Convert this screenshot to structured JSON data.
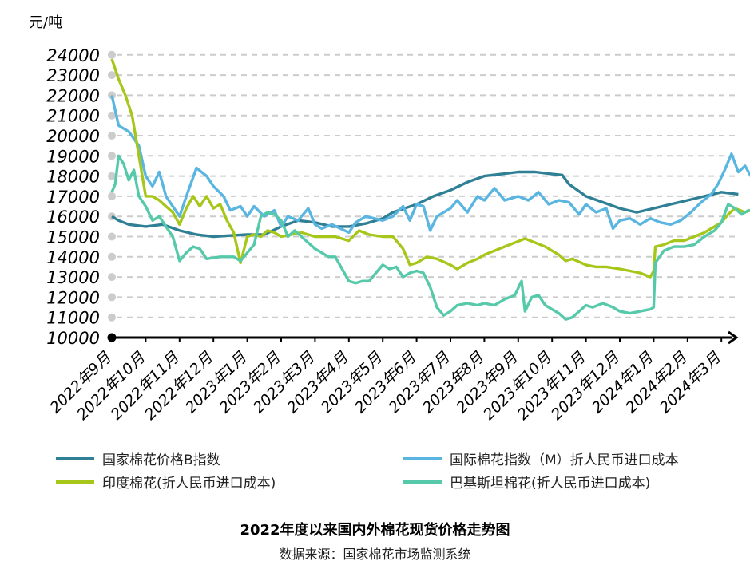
{
  "colors": {
    "b_index": "#2f7f95",
    "intl_index": "#5ab6e0",
    "india": "#a6c61a",
    "pakistan": "#55c9a9",
    "grid": "#cccccc",
    "axis": "#000000"
  },
  "caption": {
    "title": "2022年度以来国内外棉花现货价格走势图",
    "source": "数据来源：国家棉花市场监测系统"
  },
  "chart_data": {
    "type": "line",
    "unit": "元/吨",
    "ylim": [
      10000,
      24000
    ],
    "y_ticks": [
      "24000",
      "23000",
      "22000",
      "21000",
      "20000",
      "19000",
      "18000",
      "17000",
      "16000",
      "15000",
      "14000",
      "13000",
      "12000",
      "11000",
      "10000"
    ],
    "x_ticks": [
      "2022年9月",
      "2022年10月",
      "2022年11月",
      "2022年12月",
      "2023年1月",
      "2023年2月",
      "2023年3月",
      "2023年4月",
      "2023年5月",
      "2023年6月",
      "2023年7月",
      "2023年8月",
      "2023年9月",
      "2023年10月",
      "2023年11月",
      "2023年12月",
      "2024年1月",
      "2024年2月",
      "2024年3月"
    ],
    "grid": "horizontal dashed",
    "legend_position": "bottom",
    "series": [
      {
        "name": "国家棉花价格B指数",
        "color_key": "b_index",
        "points": [
          [
            0,
            16000
          ],
          [
            0.2,
            15800
          ],
          [
            0.5,
            15600
          ],
          [
            1,
            15500
          ],
          [
            1.5,
            15600
          ],
          [
            2,
            15300
          ],
          [
            2.5,
            15100
          ],
          [
            3,
            15000
          ],
          [
            3.5,
            15050
          ],
          [
            4,
            15100
          ],
          [
            4.5,
            15100
          ],
          [
            5,
            15500
          ],
          [
            5.5,
            15800
          ],
          [
            6,
            15700
          ],
          [
            6.5,
            15500
          ],
          [
            7,
            15500
          ],
          [
            7.5,
            15650
          ],
          [
            8,
            15900
          ],
          [
            8.3,
            16200
          ],
          [
            9,
            16600
          ],
          [
            9.5,
            17000
          ],
          [
            10,
            17300
          ],
          [
            10.5,
            17700
          ],
          [
            11,
            18000
          ],
          [
            11.5,
            18100
          ],
          [
            12,
            18200
          ],
          [
            12.5,
            18200
          ],
          [
            13,
            18100
          ],
          [
            13.3,
            18050
          ],
          [
            13.5,
            17600
          ],
          [
            14,
            17000
          ],
          [
            14.5,
            16700
          ],
          [
            15,
            16400
          ],
          [
            15.5,
            16200
          ],
          [
            16,
            16400
          ],
          [
            16.5,
            16600
          ],
          [
            17,
            16800
          ],
          [
            17.5,
            17000
          ],
          [
            18,
            17200
          ],
          [
            18.5,
            17100
          ]
        ]
      },
      {
        "name": "国际棉花指数（M）折人民币进口成本",
        "color_key": "intl_index",
        "points": [
          [
            0,
            22000
          ],
          [
            0.2,
            20500
          ],
          [
            0.5,
            20200
          ],
          [
            0.8,
            19500
          ],
          [
            1,
            18000
          ],
          [
            1.2,
            17500
          ],
          [
            1.4,
            18200
          ],
          [
            1.6,
            17000
          ],
          [
            1.8,
            16500
          ],
          [
            2,
            16000
          ],
          [
            2.2,
            17000
          ],
          [
            2.5,
            18400
          ],
          [
            2.8,
            18000
          ],
          [
            3,
            17500
          ],
          [
            3.3,
            17000
          ],
          [
            3.5,
            16300
          ],
          [
            3.8,
            16500
          ],
          [
            4,
            16000
          ],
          [
            4.2,
            16500
          ],
          [
            4.5,
            16000
          ],
          [
            4.8,
            16300
          ],
          [
            5,
            15500
          ],
          [
            5.2,
            16000
          ],
          [
            5.5,
            15800
          ],
          [
            5.8,
            16400
          ],
          [
            6,
            15600
          ],
          [
            6.2,
            15400
          ],
          [
            6.5,
            15600
          ],
          [
            7,
            15200
          ],
          [
            7.2,
            15700
          ],
          [
            7.5,
            16000
          ],
          [
            8,
            15800
          ],
          [
            8.3,
            16000
          ],
          [
            8.6,
            16500
          ],
          [
            8.8,
            15800
          ],
          [
            9,
            16600
          ],
          [
            9.2,
            16500
          ],
          [
            9.4,
            15300
          ],
          [
            9.6,
            16000
          ],
          [
            10,
            16400
          ],
          [
            10.2,
            16800
          ],
          [
            10.5,
            16200
          ],
          [
            10.8,
            17000
          ],
          [
            11,
            16800
          ],
          [
            11.3,
            17400
          ],
          [
            11.6,
            16800
          ],
          [
            12,
            17000
          ],
          [
            12.3,
            16800
          ],
          [
            12.6,
            17200
          ],
          [
            12.9,
            16600
          ],
          [
            13.2,
            16800
          ],
          [
            13.5,
            16700
          ],
          [
            13.8,
            16100
          ],
          [
            14,
            16600
          ],
          [
            14.3,
            16200
          ],
          [
            14.6,
            16400
          ],
          [
            14.8,
            15400
          ],
          [
            15,
            15800
          ],
          [
            15.3,
            15900
          ],
          [
            15.6,
            15600
          ],
          [
            15.9,
            15900
          ],
          [
            16.2,
            15700
          ],
          [
            16.5,
            15600
          ],
          [
            16.8,
            15800
          ],
          [
            17.1,
            16200
          ],
          [
            17.4,
            16700
          ],
          [
            17.7,
            17100
          ],
          [
            17.9,
            17600
          ],
          [
            18.1,
            18300
          ],
          [
            18.3,
            19100
          ],
          [
            18.5,
            18200
          ],
          [
            18.7,
            18500
          ],
          [
            18.9,
            17900
          ],
          [
            19,
            18000
          ]
        ]
      },
      {
        "name": "印度棉花(折人民币进口成本)",
        "color_key": "india",
        "points": [
          [
            0,
            23800
          ],
          [
            0.2,
            22800
          ],
          [
            0.4,
            22000
          ],
          [
            0.6,
            21000
          ],
          [
            0.8,
            19000
          ],
          [
            1,
            17000
          ],
          [
            1.2,
            17000
          ],
          [
            1.4,
            16800
          ],
          [
            1.6,
            16500
          ],
          [
            1.8,
            16200
          ],
          [
            2,
            15600
          ],
          [
            2.2,
            16400
          ],
          [
            2.4,
            17000
          ],
          [
            2.6,
            16500
          ],
          [
            2.8,
            17000
          ],
          [
            3,
            16400
          ],
          [
            3.2,
            16600
          ],
          [
            3.4,
            15800
          ],
          [
            3.6,
            15200
          ],
          [
            3.8,
            13700
          ],
          [
            4,
            15000
          ],
          [
            4.2,
            15100
          ],
          [
            4.4,
            15000
          ],
          [
            4.6,
            15300
          ],
          [
            4.8,
            15200
          ],
          [
            5,
            15000
          ],
          [
            5.3,
            15100
          ],
          [
            5.6,
            15200
          ],
          [
            6,
            15000
          ],
          [
            6.3,
            15000
          ],
          [
            6.6,
            15000
          ],
          [
            7,
            14800
          ],
          [
            7.3,
            15300
          ],
          [
            7.6,
            15100
          ],
          [
            8,
            15000
          ],
          [
            8.3,
            15000
          ],
          [
            8.6,
            14400
          ],
          [
            8.8,
            13600
          ],
          [
            9,
            13700
          ],
          [
            9.3,
            14000
          ],
          [
            9.6,
            13900
          ],
          [
            10,
            13600
          ],
          [
            10.2,
            13400
          ],
          [
            10.5,
            13700
          ],
          [
            10.8,
            13900
          ],
          [
            11,
            14100
          ],
          [
            11.3,
            14300
          ],
          [
            11.6,
            14500
          ],
          [
            11.9,
            14700
          ],
          [
            12.2,
            14900
          ],
          [
            12.5,
            14700
          ],
          [
            12.8,
            14500
          ],
          [
            13,
            14300
          ],
          [
            13.2,
            14100
          ],
          [
            13.4,
            13800
          ],
          [
            13.6,
            13900
          ],
          [
            14,
            13600
          ],
          [
            14.3,
            13500
          ],
          [
            14.6,
            13500
          ],
          [
            15,
            13400
          ],
          [
            15.3,
            13300
          ],
          [
            15.6,
            13200
          ],
          [
            15.9,
            13000
          ],
          [
            16,
            13300
          ],
          [
            16.05,
            14500
          ],
          [
            16.3,
            14600
          ],
          [
            16.6,
            14800
          ],
          [
            16.9,
            14800
          ],
          [
            17.2,
            15000
          ],
          [
            17.5,
            15200
          ],
          [
            17.8,
            15500
          ],
          [
            18,
            15700
          ],
          [
            18.2,
            16100
          ],
          [
            18.4,
            16400
          ],
          [
            18.7,
            16200
          ],
          [
            19,
            16400
          ]
        ]
      },
      {
        "name": "巴基斯坦棉花(折人民币进口成本)",
        "color_key": "pakistan",
        "points": [
          [
            0,
            17200
          ],
          [
            0.1,
            17600
          ],
          [
            0.2,
            19000
          ],
          [
            0.35,
            18600
          ],
          [
            0.5,
            17800
          ],
          [
            0.65,
            18300
          ],
          [
            0.8,
            17000
          ],
          [
            1,
            16500
          ],
          [
            1.2,
            15800
          ],
          [
            1.4,
            16000
          ],
          [
            1.6,
            15500
          ],
          [
            1.8,
            15000
          ],
          [
            2,
            13800
          ],
          [
            2.2,
            14200
          ],
          [
            2.4,
            14500
          ],
          [
            2.6,
            14400
          ],
          [
            2.8,
            13900
          ],
          [
            3.2,
            14000
          ],
          [
            3.6,
            14000
          ],
          [
            3.8,
            13800
          ],
          [
            4,
            14200
          ],
          [
            4.2,
            14600
          ],
          [
            4.4,
            16000
          ],
          [
            4.6,
            16200
          ],
          [
            4.8,
            16100
          ],
          [
            5,
            15800
          ],
          [
            5.2,
            15000
          ],
          [
            5.4,
            15300
          ],
          [
            5.6,
            15000
          ],
          [
            5.8,
            14700
          ],
          [
            6,
            14400
          ],
          [
            6.2,
            14200
          ],
          [
            6.4,
            14000
          ],
          [
            6.6,
            14000
          ],
          [
            6.8,
            13400
          ],
          [
            7,
            12800
          ],
          [
            7.2,
            12700
          ],
          [
            7.4,
            12800
          ],
          [
            7.6,
            12800
          ],
          [
            7.8,
            13200
          ],
          [
            8,
            13600
          ],
          [
            8.2,
            13400
          ],
          [
            8.4,
            13500
          ],
          [
            8.6,
            13000
          ],
          [
            8.8,
            13200
          ],
          [
            9,
            13300
          ],
          [
            9.2,
            13200
          ],
          [
            9.4,
            12500
          ],
          [
            9.6,
            11500
          ],
          [
            9.8,
            11100
          ],
          [
            10,
            11300
          ],
          [
            10.2,
            11600
          ],
          [
            10.5,
            11700
          ],
          [
            10.8,
            11600
          ],
          [
            11,
            11700
          ],
          [
            11.3,
            11600
          ],
          [
            11.6,
            11900
          ],
          [
            11.9,
            12100
          ],
          [
            12.1,
            12800
          ],
          [
            12.2,
            11300
          ],
          [
            12.4,
            12000
          ],
          [
            12.6,
            12100
          ],
          [
            12.8,
            11600
          ],
          [
            13,
            11400
          ],
          [
            13.2,
            11200
          ],
          [
            13.4,
            10900
          ],
          [
            13.6,
            11000
          ],
          [
            13.8,
            11300
          ],
          [
            14,
            11600
          ],
          [
            14.2,
            11500
          ],
          [
            14.5,
            11700
          ],
          [
            14.8,
            11500
          ],
          [
            15,
            11300
          ],
          [
            15.3,
            11200
          ],
          [
            15.6,
            11300
          ],
          [
            15.9,
            11400
          ],
          [
            16,
            11500
          ],
          [
            16.05,
            13700
          ],
          [
            16.3,
            14300
          ],
          [
            16.6,
            14500
          ],
          [
            16.9,
            14500
          ],
          [
            17.2,
            14600
          ],
          [
            17.5,
            15000
          ],
          [
            17.8,
            15300
          ],
          [
            18,
            15700
          ],
          [
            18.2,
            16600
          ],
          [
            18.4,
            16400
          ],
          [
            18.6,
            16100
          ],
          [
            18.8,
            16300
          ],
          [
            19,
            16200
          ]
        ]
      }
    ]
  }
}
